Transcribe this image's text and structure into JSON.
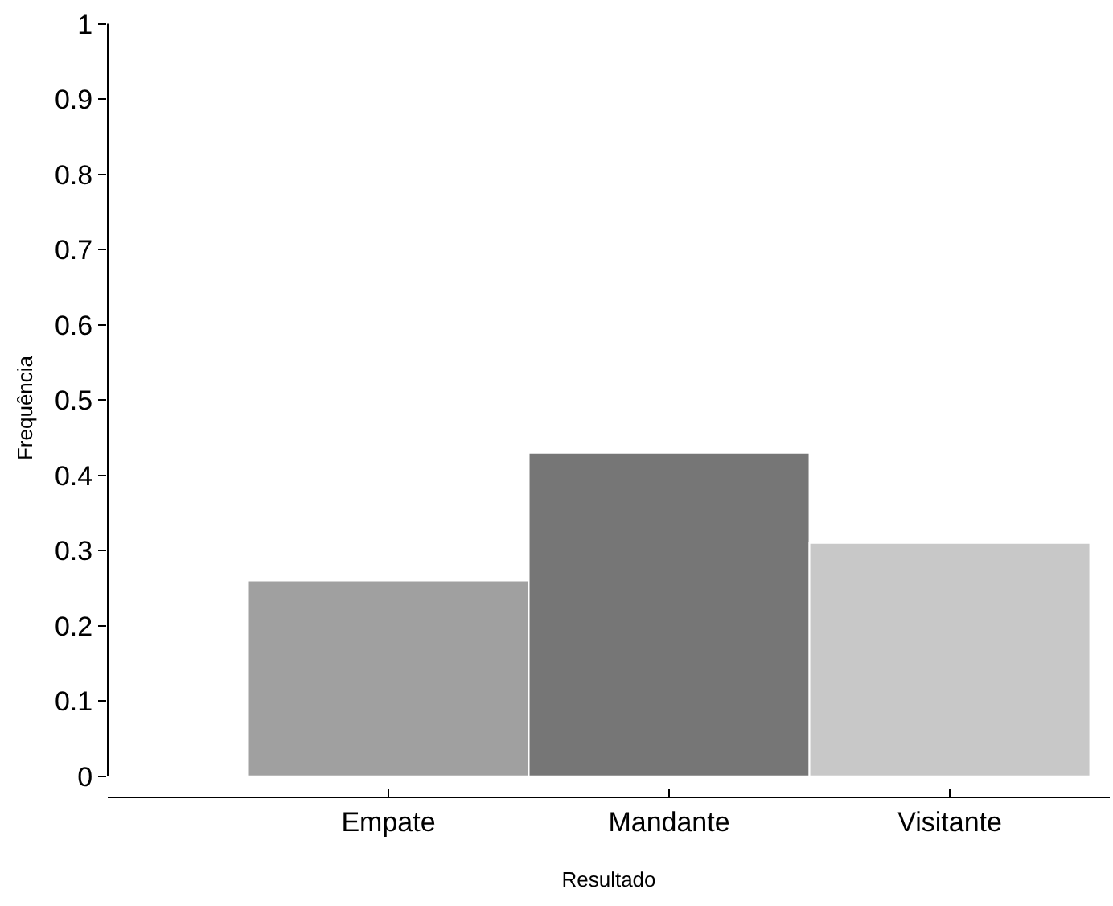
{
  "chart_data": {
    "type": "bar",
    "xlabel": "Resultado",
    "ylabel": "Frequência",
    "categories": [
      "Empate",
      "Mandante",
      "Visitante"
    ],
    "values": [
      0.26,
      0.43,
      0.31
    ],
    "colors": [
      "#a0a0a0",
      "#767676",
      "#c8c8c8"
    ],
    "ylim": [
      0,
      1
    ],
    "yticks": [
      0,
      0.1,
      0.2,
      0.3,
      0.4,
      0.5,
      0.6,
      0.7,
      0.8,
      0.9,
      1
    ]
  }
}
